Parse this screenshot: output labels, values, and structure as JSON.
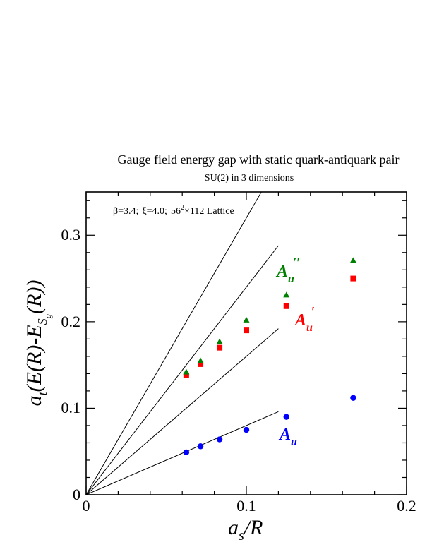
{
  "chart_data": {
    "type": "scatter",
    "title": "Gauge field energy gap with static quark-antiquark pair",
    "subtitle": "SU(2) in 3 dimensions",
    "annotation": {
      "beta": "β=3.4;",
      "xi": "ξ=4.0;",
      "lattice_base": "56",
      "lattice_exp": "2",
      "lattice_rest": "×112 Lattice"
    },
    "xlabel": {
      "a": "a",
      "sub": "s",
      "rest": "/R"
    },
    "ylabel": {
      "a": "a",
      "sub1": "t",
      "mid": "(E(R)-E",
      "sub2": "S",
      "sub3": "g",
      "end": "(R))"
    },
    "xlim": [
      0,
      0.2
    ],
    "ylim": [
      0,
      0.35
    ],
    "x_ticks": [
      0,
      0.1,
      0.2
    ],
    "x_tick_labels": [
      "0",
      "0.1",
      "0.2"
    ],
    "y_ticks": [
      0,
      0.1,
      0.2,
      0.3
    ],
    "y_tick_labels": [
      "0",
      "0.1",
      "0.2",
      "0.3"
    ],
    "series": [
      {
        "name": "A_u",
        "label_main": "A",
        "label_sub": "u",
        "label_sup": "",
        "color": "#0000ff",
        "marker": "circle",
        "points": [
          [
            0.0625,
            0.049
          ],
          [
            0.0714,
            0.056
          ],
          [
            0.0833,
            0.064
          ],
          [
            0.1,
            0.075
          ],
          [
            0.125,
            0.09
          ],
          [
            0.1667,
            0.112
          ]
        ]
      },
      {
        "name": "A'_u",
        "label_main": "A",
        "label_sub": "u",
        "label_sup": "′",
        "color": "#ff0000",
        "marker": "square",
        "points": [
          [
            0.0625,
            0.138
          ],
          [
            0.0714,
            0.151
          ],
          [
            0.0833,
            0.17
          ],
          [
            0.1,
            0.19
          ],
          [
            0.125,
            0.218
          ],
          [
            0.1667,
            0.25
          ]
        ]
      },
      {
        "name": "A''_u",
        "label_main": "A",
        "label_sub": "u",
        "label_sup": "′′",
        "color": "#008000",
        "marker": "triangle",
        "points": [
          [
            0.0625,
            0.142
          ],
          [
            0.0714,
            0.155
          ],
          [
            0.0833,
            0.177
          ],
          [
            0.1,
            0.202
          ],
          [
            0.125,
            0.231
          ],
          [
            0.1667,
            0.271
          ]
        ]
      }
    ],
    "reference_lines": [
      {
        "slope": 0.8,
        "x_end": 0.12
      },
      {
        "slope": 1.6,
        "x_end": 0.12
      },
      {
        "slope": 2.4,
        "x_end": 0.12
      },
      {
        "slope": 3.2,
        "x_end": 0.12
      }
    ],
    "grid": false
  }
}
